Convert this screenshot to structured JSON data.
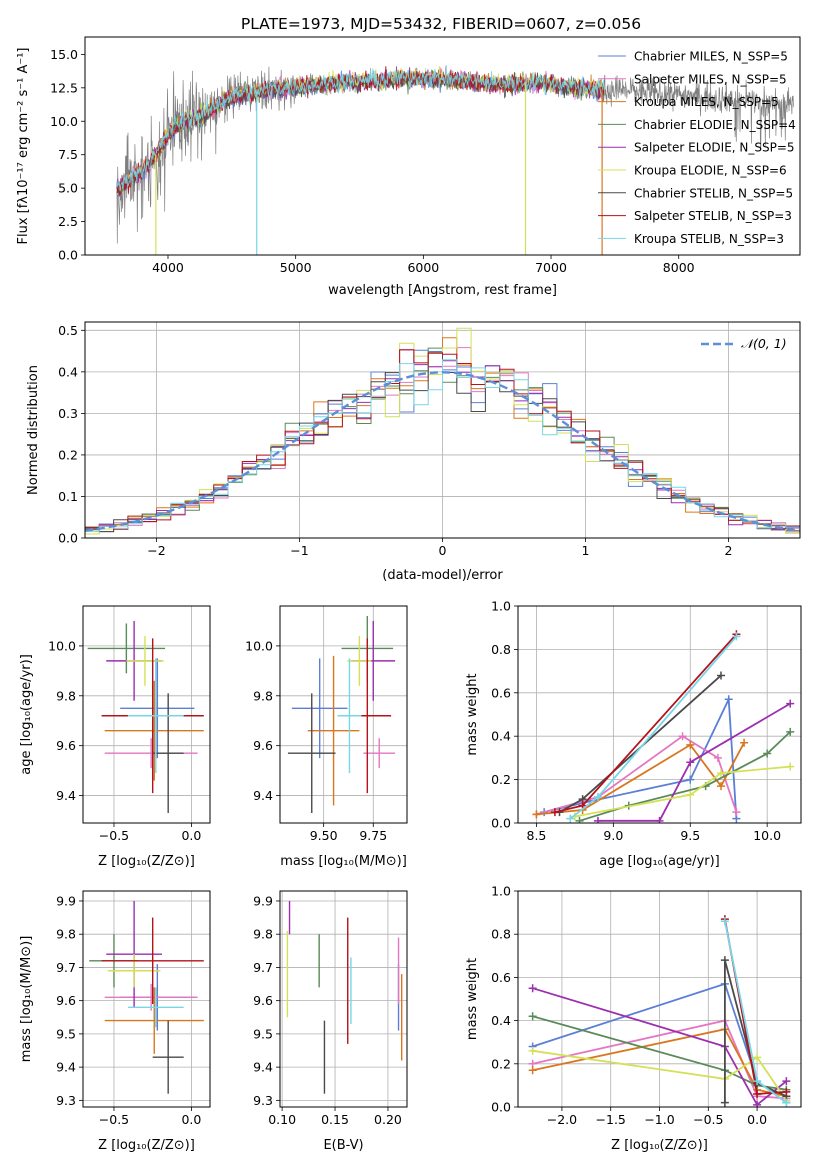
{
  "figure_title": "PLATE=1973, MJD=53432, FIBERID=0607, z=0.056",
  "colors": {
    "Chabrier MILES": "#5b7fd6",
    "Salpeter MILES": "#e377c2",
    "Kroupa MILES": "#d9771f",
    "Chabrier ELODIE": "#5a8a5a",
    "Salpeter ELODIE": "#9b2fae",
    "Kroupa ELODIE": "#d4e157",
    "Chabrier STELIB": "#4a4a4a",
    "Salpeter STELIB": "#b5121b",
    "Kroupa STELIB": "#76d7e6",
    "data": "#808080",
    "normal": "#5b8fd9"
  },
  "chart_data": [
    {
      "id": "spectrum",
      "type": "line",
      "xlabel": "wavelength [Angstrom, rest frame]",
      "ylabel": "Flux [fλ10⁻¹⁷ erg cm⁻² s⁻¹ A⁻¹]",
      "xlim": [
        3350,
        8950
      ],
      "ylim": [
        0,
        16.3
      ],
      "xticks": [
        4000,
        5000,
        6000,
        7000,
        8000
      ],
      "yticks": [
        0.0,
        2.5,
        5.0,
        7.5,
        10.0,
        12.5,
        15.0
      ],
      "grid": false,
      "legend_position": "right",
      "legend": [
        "Chabrier MILES, N_SSP=5",
        "Salpeter MILES, N_SSP=5",
        "Kroupa MILES, N_SSP=5",
        "Chabrier ELODIE, N_SSP=4",
        "Salpeter ELODIE, N_SSP=5",
        "Kroupa ELODIE, N_SSP=6",
        "Chabrier STELIB, N_SSP=5",
        "Salpeter STELIB, N_SSP=3",
        "Kroupa STELIB, N_SSP=3"
      ],
      "continuum": {
        "x": [
          3600,
          3700,
          3800,
          3900,
          4000,
          4100,
          4200,
          4300,
          4400,
          4500,
          4600,
          4700,
          4800,
          4900,
          5000,
          5200,
          5400,
          5600,
          5800,
          6000,
          6200,
          6400,
          6600,
          6800,
          7000,
          7200,
          7400,
          7600,
          7800,
          8000,
          8200,
          8400,
          8600,
          8800
        ],
        "y": [
          5.0,
          5.8,
          6.4,
          7.4,
          9.2,
          10.0,
          10.3,
          10.6,
          11.4,
          11.9,
          12.1,
          12.2,
          12.4,
          12.5,
          12.6,
          12.8,
          13.0,
          13.1,
          13.2,
          13.3,
          13.2,
          13.0,
          12.8,
          12.9,
          12.9,
          12.6,
          12.4,
          12.3,
          12.1,
          12.0,
          11.8,
          11.7,
          11.5,
          11.3
        ]
      }
    },
    {
      "id": "residuals",
      "type": "histogram",
      "xlabel": "(data-model)/error",
      "ylabel": "Normed distribution",
      "xlim": [
        -2.5,
        2.5
      ],
      "ylim": [
        0,
        0.52
      ],
      "xticks": [
        -2,
        -1,
        0,
        1,
        2
      ],
      "yticks": [
        0.0,
        0.1,
        0.2,
        0.3,
        0.4,
        0.5
      ],
      "grid": true,
      "legend_position": "top-right",
      "legend": [
        "𝒩(0, 1)"
      ],
      "bin_width": 0.1
    },
    {
      "id": "age-vs-Z",
      "type": "errorbar",
      "xlabel": "Z [log₁₀(Z/Z⊙)]",
      "ylabel": "age  [log₁₀(age/yr)]",
      "xlim": [
        -0.7,
        0.12
      ],
      "ylim": [
        9.29,
        10.16
      ],
      "xticks": [
        -0.5,
        0.0
      ],
      "yticks": [
        9.4,
        9.6,
        9.8,
        10.0
      ],
      "grid": true,
      "points": [
        {
          "model": "Chabrier MILES",
          "x": -0.22,
          "xerr": 0.24,
          "y": 9.75,
          "yerr": 0.2
        },
        {
          "model": "Salpeter MILES",
          "x": -0.26,
          "xerr": 0.3,
          "y": 9.57,
          "yerr": 0.06
        },
        {
          "model": "Kroupa MILES",
          "x": -0.24,
          "xerr": 0.32,
          "y": 9.66,
          "yerr": 0.2
        },
        {
          "model": "Chabrier ELODIE",
          "x": -0.42,
          "xerr": 0.25,
          "y": 9.99,
          "yerr": 0.1
        },
        {
          "model": "Salpeter ELODIE",
          "x": -0.37,
          "xerr": 0.18,
          "y": 9.94,
          "yerr": 0.16
        },
        {
          "model": "Kroupa ELODIE",
          "x": -0.3,
          "xerr": 0.12,
          "y": 9.94,
          "yerr": 0.1
        },
        {
          "model": "Chabrier STELIB",
          "x": -0.15,
          "xerr": 0.1,
          "y": 9.57,
          "yerr": 0.24
        },
        {
          "model": "Salpeter STELIB",
          "x": -0.25,
          "xerr": 0.33,
          "y": 9.72,
          "yerr": 0.31
        },
        {
          "model": "Kroupa STELIB",
          "x": -0.23,
          "xerr": 0.18,
          "y": 9.72,
          "yerr": 0.23
        }
      ]
    },
    {
      "id": "age-vs-mass",
      "type": "errorbar",
      "xlabel": "mass [log₁₀(M/M⊙)]",
      "ylabel": "",
      "xlim": [
        9.28,
        9.92
      ],
      "ylim": [
        9.29,
        10.16
      ],
      "xticks": [
        9.5,
        9.75
      ],
      "yticks": [
        9.4,
        9.6,
        9.8,
        10.0
      ],
      "grid": true,
      "points": [
        {
          "model": "Chabrier MILES",
          "x": 9.48,
          "xerr": 0.14,
          "y": 9.75,
          "yerr": 0.2
        },
        {
          "model": "Salpeter MILES",
          "x": 9.78,
          "xerr": 0.08,
          "y": 9.57,
          "yerr": 0.06
        },
        {
          "model": "Kroupa MILES",
          "x": 9.55,
          "xerr": 0.13,
          "y": 9.66,
          "yerr": 0.3
        },
        {
          "model": "Chabrier ELODIE",
          "x": 9.72,
          "xerr": 0.13,
          "y": 9.99,
          "yerr": 0.13
        },
        {
          "model": "Salpeter ELODIE",
          "x": 9.75,
          "xerr": 0.11,
          "y": 9.94,
          "yerr": 0.16
        },
        {
          "model": "Kroupa ELODIE",
          "x": 9.68,
          "xerr": 0.06,
          "y": 9.94,
          "yerr": 0.1
        },
        {
          "model": "Chabrier STELIB",
          "x": 9.44,
          "xerr": 0.12,
          "y": 9.57,
          "yerr": 0.24
        },
        {
          "model": "Salpeter STELIB",
          "x": 9.72,
          "xerr": 0.12,
          "y": 9.72,
          "yerr": 0.31
        },
        {
          "model": "Kroupa STELIB",
          "x": 9.63,
          "xerr": 0.06,
          "y": 9.72,
          "yerr": 0.23
        }
      ]
    },
    {
      "id": "weight-vs-age",
      "type": "line",
      "xlabel": "age  [log₁₀(age/yr)]",
      "ylabel": "mass weight",
      "xlim": [
        8.38,
        10.22
      ],
      "ylim": [
        0,
        1.0
      ],
      "xticks": [
        8.5,
        9.0,
        9.5,
        10.0
      ],
      "yticks": [
        0.0,
        0.2,
        0.4,
        0.6,
        0.8,
        1.0
      ],
      "grid": true,
      "series": [
        {
          "model": "Chabrier MILES",
          "x": [
            8.55,
            8.85,
            9.5,
            9.75,
            9.8
          ],
          "y": [
            0.05,
            0.1,
            0.2,
            0.57,
            0.02
          ]
        },
        {
          "model": "Salpeter MILES",
          "x": [
            8.5,
            8.9,
            9.45,
            9.68,
            9.8
          ],
          "y": [
            0.04,
            0.12,
            0.4,
            0.3,
            0.05
          ]
        },
        {
          "model": "Kroupa MILES",
          "x": [
            8.5,
            8.8,
            9.5,
            9.7,
            9.85
          ],
          "y": [
            0.04,
            0.06,
            0.36,
            0.17,
            0.37
          ]
        },
        {
          "model": "Chabrier ELODIE",
          "x": [
            8.78,
            9.1,
            9.6,
            10.0,
            10.15
          ],
          "y": [
            0.01,
            0.08,
            0.17,
            0.32,
            0.42
          ]
        },
        {
          "model": "Salpeter ELODIE",
          "x": [
            8.9,
            9.3,
            9.5,
            10.15
          ],
          "y": [
            0.01,
            0.01,
            0.28,
            0.55
          ]
        },
        {
          "model": "Kroupa ELODIE",
          "x": [
            8.75,
            9.5,
            9.7,
            10.15
          ],
          "y": [
            0.03,
            0.13,
            0.23,
            0.26
          ]
        },
        {
          "model": "Chabrier STELIB",
          "x": [
            8.65,
            8.8,
            9.7
          ],
          "y": [
            0.05,
            0.11,
            0.68
          ]
        },
        {
          "model": "Salpeter STELIB",
          "x": [
            8.62,
            8.8,
            9.8
          ],
          "y": [
            0.05,
            0.08,
            0.87
          ]
        },
        {
          "model": "Kroupa STELIB",
          "x": [
            8.72,
            8.9,
            9.8
          ],
          "y": [
            0.02,
            0.12,
            0.86
          ]
        }
      ]
    },
    {
      "id": "mass-vs-Z",
      "type": "errorbar",
      "xlabel": "Z [log₁₀(Z/Z⊙)]",
      "ylabel": "mass [log₁₀(M/M⊙)]",
      "xlim": [
        -0.7,
        0.12
      ],
      "ylim": [
        9.28,
        9.93
      ],
      "xticks": [
        -0.5,
        0.0
      ],
      "yticks": [
        9.3,
        9.4,
        9.5,
        9.6,
        9.7,
        9.8,
        9.9
      ],
      "grid": true,
      "points": [
        {
          "model": "Chabrier MILES",
          "x": -0.22,
          "xerr": 0.24,
          "y": 9.61,
          "yerr": 0.1
        },
        {
          "model": "Salpeter MILES",
          "x": -0.26,
          "xerr": 0.3,
          "y": 9.61,
          "yerr": 0.04
        },
        {
          "model": "Kroupa MILES",
          "x": -0.24,
          "xerr": 0.32,
          "y": 9.54,
          "yerr": 0.1
        },
        {
          "model": "Chabrier ELODIE",
          "x": -0.5,
          "xerr": 0.16,
          "y": 9.72,
          "yerr": 0.08
        },
        {
          "model": "Salpeter ELODIE",
          "x": -0.37,
          "xerr": 0.18,
          "y": 9.74,
          "yerr": 0.16
        },
        {
          "model": "Kroupa ELODIE",
          "x": -0.37,
          "xerr": 0.17,
          "y": 9.69,
          "yerr": 0.05
        },
        {
          "model": "Chabrier STELIB",
          "x": -0.15,
          "xerr": 0.1,
          "y": 9.43,
          "yerr": 0.11
        },
        {
          "model": "Salpeter STELIB",
          "x": -0.25,
          "xerr": 0.33,
          "y": 9.72,
          "yerr": 0.13
        },
        {
          "model": "Kroupa STELIB",
          "x": -0.23,
          "xerr": 0.18,
          "y": 9.58,
          "yerr": 0.06
        }
      ]
    },
    {
      "id": "mass-vs-ebv",
      "type": "errorbar",
      "xlabel": "E(B-V)",
      "ylabel": "",
      "xlim": [
        0.098,
        0.218
      ],
      "ylim": [
        9.28,
        9.93
      ],
      "xticks": [
        0.1,
        0.15,
        0.2
      ],
      "yticks": [
        9.3,
        9.4,
        9.5,
        9.6,
        9.7,
        9.8,
        9.9
      ],
      "grid": true,
      "points": [
        {
          "model": "Chabrier MILES",
          "x": 0.21,
          "y": 9.61,
          "yerr": 0.1
        },
        {
          "model": "Salpeter MILES",
          "x": 0.21,
          "y": 9.69,
          "yerr": 0.1
        },
        {
          "model": "Kroupa MILES",
          "x": 0.213,
          "y": 9.55,
          "yerr": 0.13
        },
        {
          "model": "Chabrier ELODIE",
          "x": 0.135,
          "y": 9.72,
          "yerr": 0.08
        },
        {
          "model": "Salpeter ELODIE",
          "x": 0.107,
          "y": 9.85,
          "yerr": 0.05
        },
        {
          "model": "Kroupa ELODIE",
          "x": 0.105,
          "y": 9.68,
          "yerr": 0.13
        },
        {
          "model": "Chabrier STELIB",
          "x": 0.14,
          "y": 9.43,
          "yerr": 0.11
        },
        {
          "model": "Salpeter STELIB",
          "x": 0.162,
          "y": 9.66,
          "yerr": 0.19
        },
        {
          "model": "Kroupa STELIB",
          "x": 0.165,
          "y": 9.63,
          "yerr": 0.1
        }
      ]
    },
    {
      "id": "weight-vs-Z",
      "type": "line",
      "xlabel": "Z [log₁₀(Z/Z⊙)]",
      "ylabel": "mass weight",
      "xlim": [
        -2.45,
        0.45
      ],
      "ylim": [
        0,
        1.0
      ],
      "xticks": [
        -2.0,
        -1.5,
        -1.0,
        -0.5,
        0.0
      ],
      "yticks": [
        0.0,
        0.2,
        0.4,
        0.6,
        0.8,
        1.0
      ],
      "grid": true,
      "series": [
        {
          "model": "Chabrier MILES",
          "x": [
            -2.3,
            -0.33,
            0.0,
            0.3
          ],
          "y": [
            0.28,
            0.57,
            0.12,
            0.02
          ]
        },
        {
          "model": "Salpeter MILES",
          "x": [
            -2.3,
            -0.33,
            0.0,
            0.3
          ],
          "y": [
            0.2,
            0.4,
            0.05,
            0.04
          ]
        },
        {
          "model": "Kroupa MILES",
          "x": [
            -2.3,
            -0.33,
            0.0,
            0.3
          ],
          "y": [
            0.17,
            0.36,
            0.08,
            0.05
          ]
        },
        {
          "model": "Chabrier ELODIE",
          "x": [
            -2.3,
            -0.33,
            0.0,
            0.3
          ],
          "y": [
            0.42,
            0.17,
            0.1,
            0.08
          ]
        },
        {
          "model": "Salpeter ELODIE",
          "x": [
            -2.3,
            -0.33,
            0.0,
            0.3
          ],
          "y": [
            0.55,
            0.28,
            0.01,
            0.12
          ]
        },
        {
          "model": "Kroupa ELODIE",
          "x": [
            -2.3,
            -0.33,
            0.0,
            0.3
          ],
          "y": [
            0.26,
            0.13,
            0.23,
            0.03
          ]
        },
        {
          "model": "Chabrier STELIB",
          "x": [
            -0.33,
            -0.33,
            0.0,
            0.3
          ],
          "y": [
            0.02,
            0.68,
            0.11,
            0.05
          ]
        },
        {
          "model": "Salpeter STELIB",
          "x": [
            -0.33,
            0.0,
            0.3
          ],
          "y": [
            0.87,
            0.06,
            0.07
          ]
        },
        {
          "model": "Kroupa STELIB",
          "x": [
            -0.33,
            0.0,
            0.3
          ],
          "y": [
            0.86,
            0.12,
            0.02
          ]
        }
      ]
    }
  ]
}
